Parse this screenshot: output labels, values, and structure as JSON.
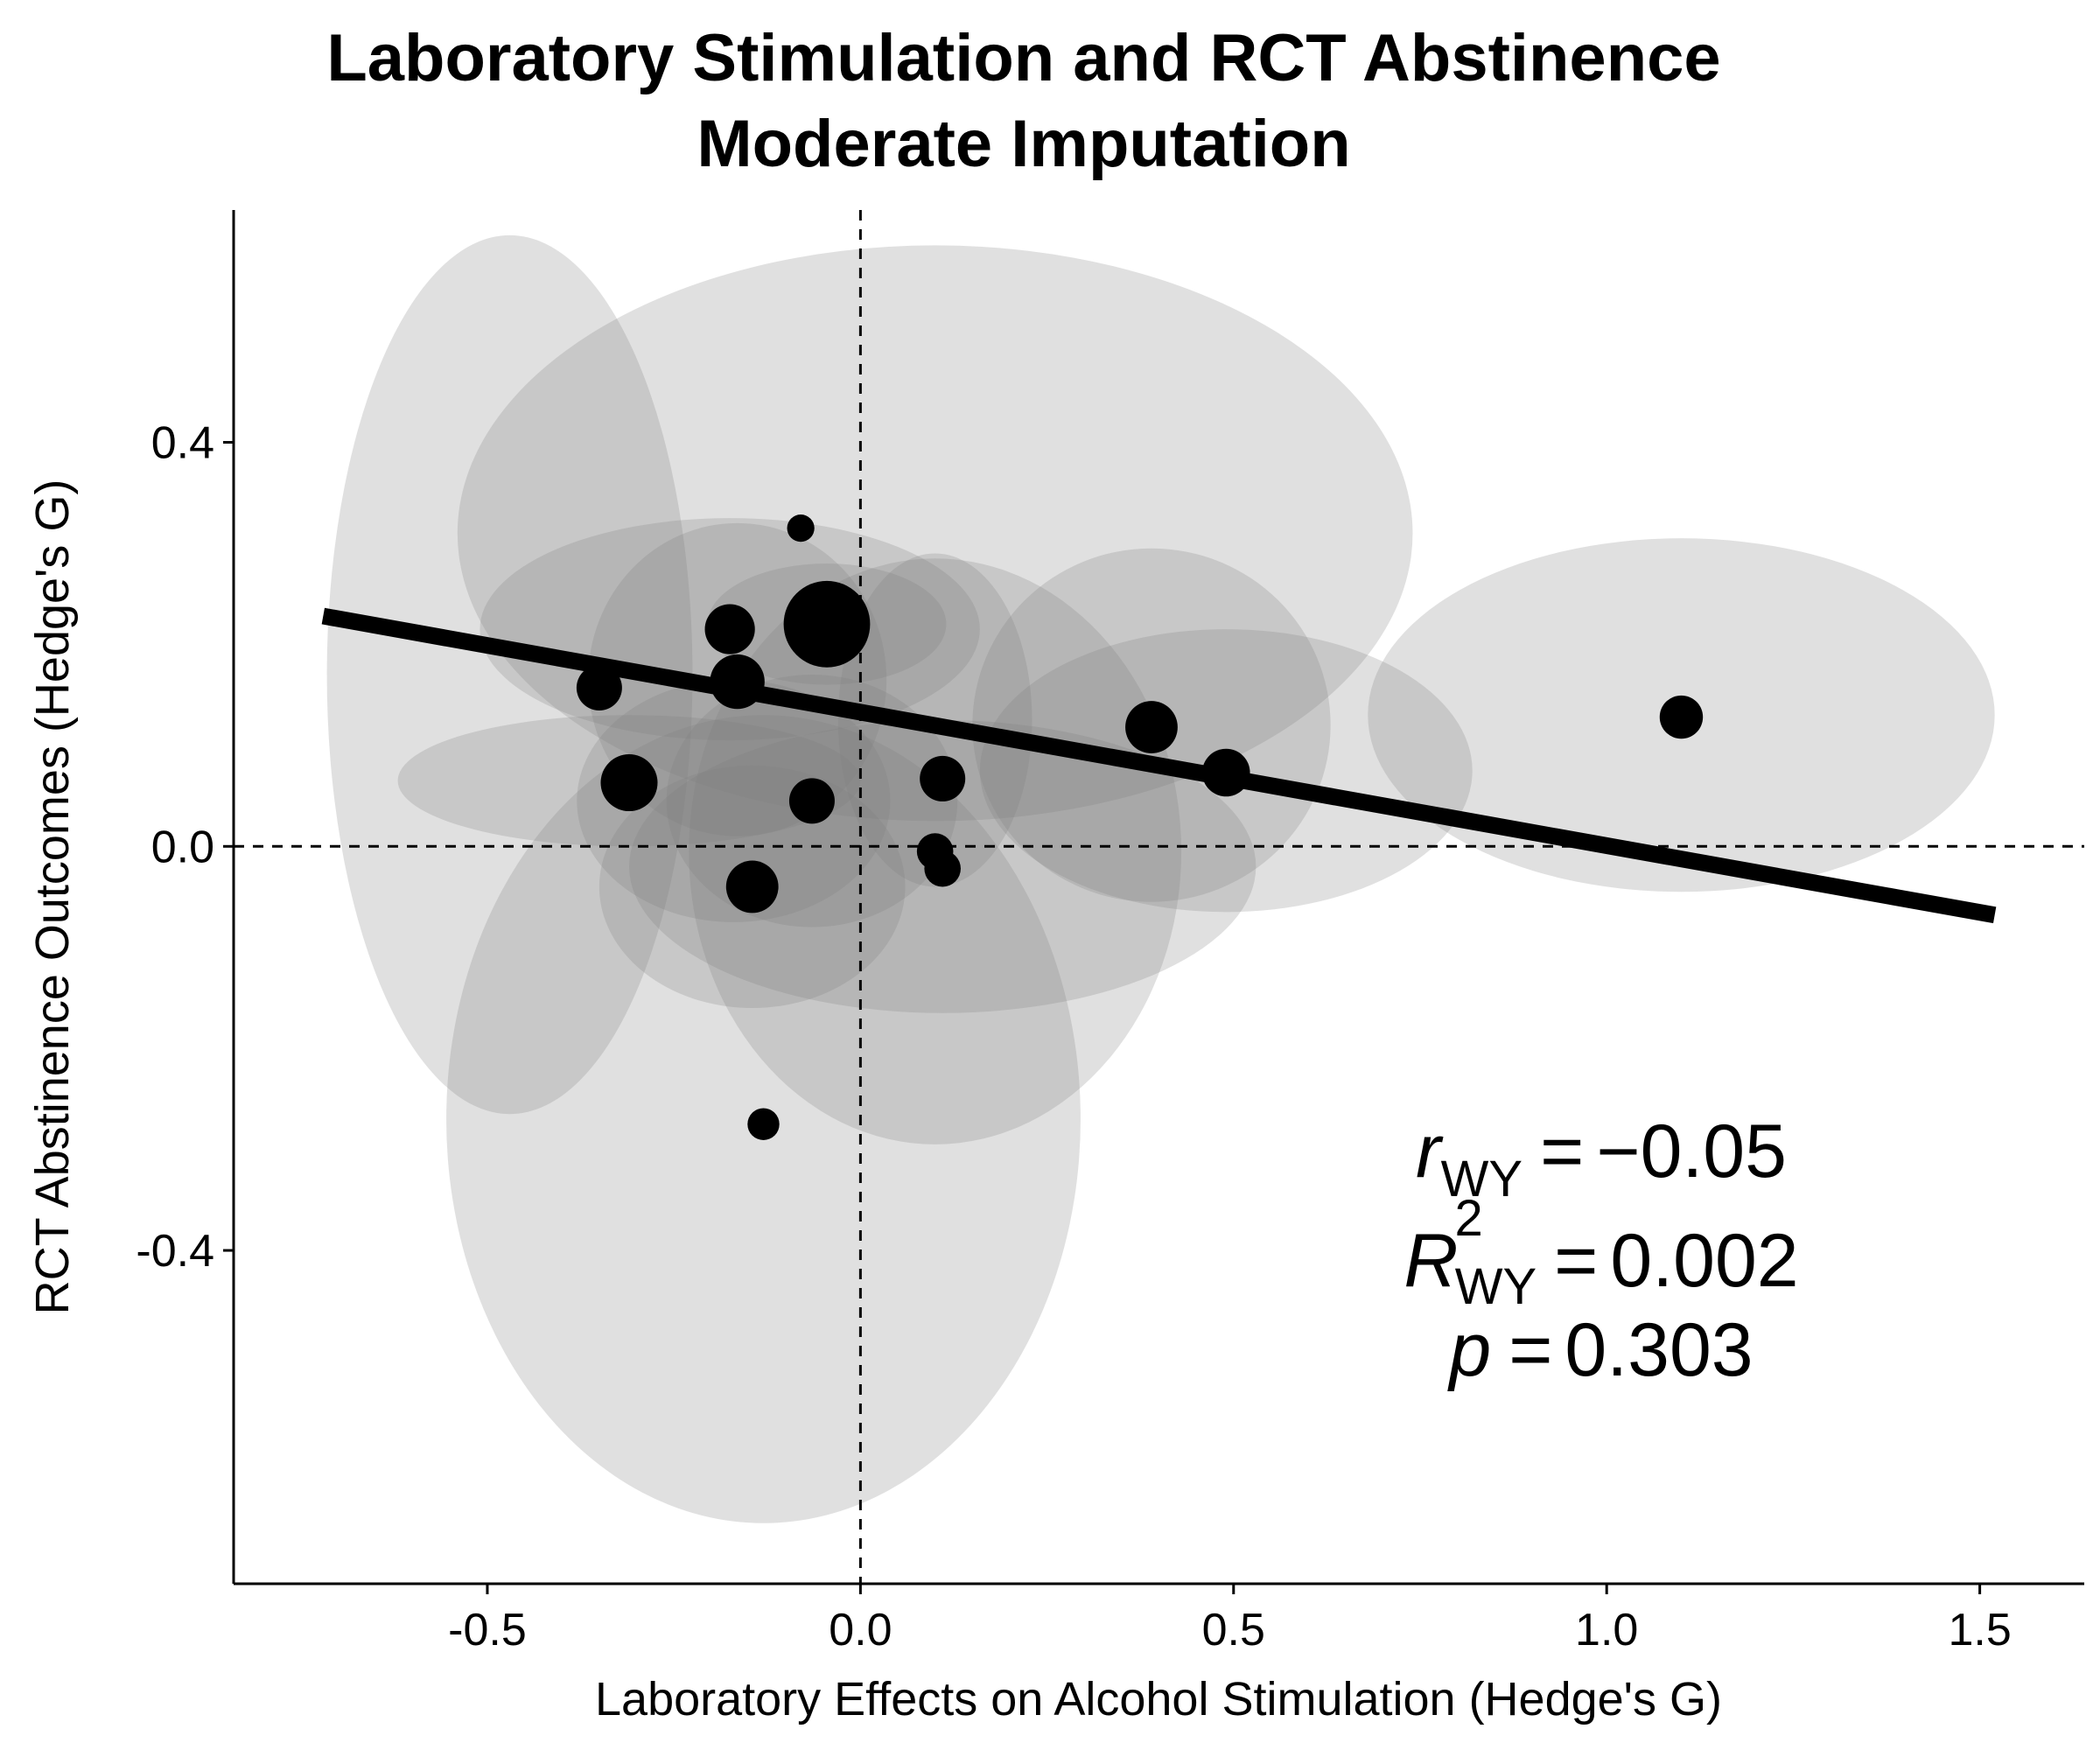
{
  "chart_data": {
    "type": "scatter",
    "title": [
      "Laboratory Stimulation and RCT Abstinence",
      "Moderate Imputation"
    ],
    "xlabel": "Laboratory Effects on Alcohol Stimulation (Hedge's G)",
    "ylabel": "RCT Abstinence Outcomes (Hedge's G)",
    "xlim": [
      -0.84,
      1.64
    ],
    "ylim": [
      -0.73,
      0.63
    ],
    "xticks": [
      -0.5,
      0.0,
      0.5,
      1.0,
      1.5
    ],
    "xtick_labels": [
      "-0.5",
      "0.0",
      "0.5",
      "1.0",
      "1.5"
    ],
    "yticks": [
      -0.4,
      0.0,
      0.4
    ],
    "ytick_labels": [
      "-0.4",
      "0.0",
      "0.4"
    ],
    "reference_lines": {
      "x": 0.0,
      "y": 0.0,
      "style": "dashed"
    },
    "grid": false,
    "points": [
      {
        "x": -0.35,
        "y": 0.157,
        "size": 1.0
      },
      {
        "x": -0.31,
        "y": 0.063,
        "size": 1.25
      },
      {
        "x": -0.175,
        "y": 0.215,
        "size": 1.1
      },
      {
        "x": -0.165,
        "y": 0.163,
        "size": 1.2
      },
      {
        "x": -0.145,
        "y": -0.04,
        "size": 1.15
      },
      {
        "x": -0.13,
        "y": -0.275,
        "size": 0.7
      },
      {
        "x": -0.08,
        "y": 0.315,
        "size": 0.6
      },
      {
        "x": -0.065,
        "y": 0.045,
        "size": 1.0
      },
      {
        "x": -0.045,
        "y": 0.22,
        "size": 1.9
      },
      {
        "x": 0.1,
        "y": -0.005,
        "size": 0.8
      },
      {
        "x": 0.11,
        "y": 0.067,
        "size": 1.0
      },
      {
        "x": 0.11,
        "y": -0.022,
        "size": 0.8
      },
      {
        "x": 0.39,
        "y": 0.118,
        "size": 1.15
      },
      {
        "x": 0.49,
        "y": 0.073,
        "size": 1.05
      },
      {
        "x": 1.1,
        "y": 0.128,
        "size": 0.95
      }
    ],
    "uncertainty_ellipses": [
      {
        "cx": -0.47,
        "cy": 0.17,
        "rx": 0.245,
        "ry": 0.435
      },
      {
        "cx": -0.13,
        "cy": -0.27,
        "rx": 0.425,
        "ry": 0.4
      },
      {
        "cx": 0.1,
        "cy": 0.31,
        "rx": 0.64,
        "ry": 0.285
      },
      {
        "cx": 1.1,
        "cy": 0.13,
        "rx": 0.42,
        "ry": 0.175
      },
      {
        "cx": 0.49,
        "cy": 0.075,
        "rx": 0.33,
        "ry": 0.14
      },
      {
        "cx": 0.39,
        "cy": 0.12,
        "rx": 0.24,
        "ry": 0.175
      },
      {
        "cx": 0.11,
        "cy": -0.02,
        "rx": 0.42,
        "ry": 0.145
      },
      {
        "cx": 0.1,
        "cy": -0.005,
        "rx": 0.33,
        "ry": 0.29
      },
      {
        "cx": -0.175,
        "cy": 0.215,
        "rx": 0.335,
        "ry": 0.11
      },
      {
        "cx": -0.045,
        "cy": 0.22,
        "rx": 0.16,
        "ry": 0.06
      },
      {
        "cx": -0.165,
        "cy": 0.165,
        "rx": 0.2,
        "ry": 0.155
      },
      {
        "cx": -0.31,
        "cy": 0.065,
        "rx": 0.31,
        "ry": 0.065
      },
      {
        "cx": -0.065,
        "cy": 0.045,
        "rx": 0.195,
        "ry": 0.125
      },
      {
        "cx": -0.17,
        "cy": 0.045,
        "rx": 0.21,
        "ry": 0.12
      },
      {
        "cx": -0.145,
        "cy": -0.04,
        "rx": 0.205,
        "ry": 0.12
      },
      {
        "cx": 0.1,
        "cy": 0.125,
        "rx": 0.13,
        "ry": 0.165
      }
    ],
    "regression_line": {
      "x": [
        -0.72,
        1.52
      ],
      "y": [
        0.228,
        -0.068
      ]
    },
    "annotation": {
      "r_symbol": "r",
      "r2_symbol": "R",
      "r2_superscript": "2",
      "subscript": "WY",
      "p_symbol": "p",
      "equals": "=",
      "r_value": "−0.05",
      "r2_value": "0.002",
      "p_value": "0.303"
    },
    "colors": {
      "ellipse": "#7f7f7f",
      "point": "#000000",
      "line": "#000000"
    }
  }
}
